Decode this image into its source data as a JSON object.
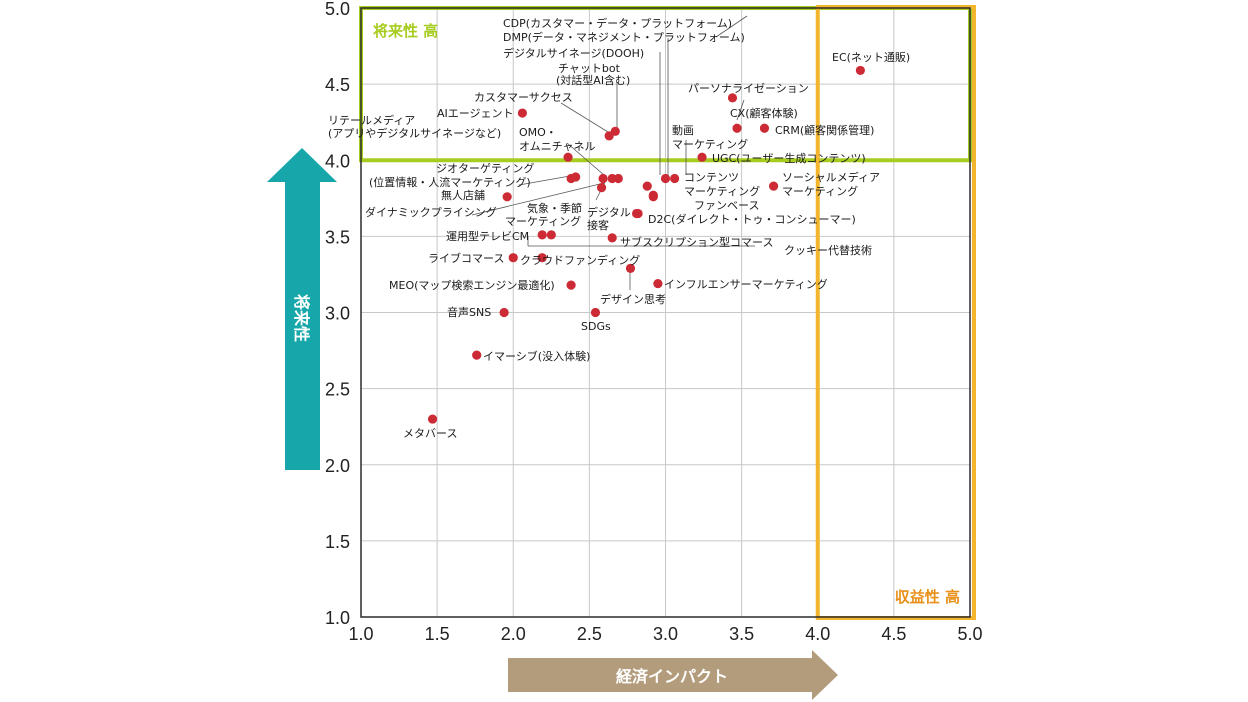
{
  "colors": {
    "grid": "#c8c8c8",
    "frame": "#2b2b2b",
    "point": "#cc2b36",
    "zone_future": "#a6cc1f",
    "zone_profit": "#f3b52c",
    "zone_profit_text": "#e8901a",
    "y_arrow": "#17a6a9",
    "x_arrow": "#b39c7c"
  },
  "chart_data": {
    "type": "scatter",
    "xlabel": "経済インパクト",
    "ylabel": "将来性",
    "xlim": [
      1.0,
      5.0
    ],
    "ylim": [
      1.0,
      5.0
    ],
    "x_ticks": [
      "1.0",
      "1.5",
      "2.0",
      "2.5",
      "3.0",
      "3.5",
      "4.0",
      "4.5",
      "5.0"
    ],
    "y_ticks": [
      "1.0",
      "1.5",
      "2.0",
      "2.5",
      "3.0",
      "3.5",
      "4.0",
      "4.5",
      "5.0"
    ],
    "grid": true,
    "zones": [
      {
        "label": "将来性 高",
        "x_range": [
          1.0,
          5.0
        ],
        "y_range": [
          4.0,
          5.0
        ],
        "color": "green"
      },
      {
        "label": "収益性 高",
        "x_range": [
          4.0,
          5.0
        ],
        "y_range": [
          1.0,
          5.0
        ],
        "color": "orange"
      }
    ],
    "points": [
      {
        "label": "EC(ネット通販)",
        "x": 4.28,
        "y": 4.59
      },
      {
        "label": "パーソナライゼーション",
        "x": 3.44,
        "y": 4.41
      },
      {
        "label": "CX(顧客体験)",
        "x": 3.47,
        "y": 4.21
      },
      {
        "label": "CRM(顧客関係管理)",
        "x": 3.65,
        "y": 4.21
      },
      {
        "label": "UGC(ユーザー生成コンテンツ)",
        "x": 3.24,
        "y": 4.02
      },
      {
        "label": "CDP(カスタマー・データ・プラットフォーム)",
        "x": 3.0,
        "y": 3.88
      },
      {
        "label": "DMP(データ・マネジメント・プラットフォーム)",
        "x": 3.06,
        "y": 3.88
      },
      {
        "label": "デジタルサイネージ(DOOH)",
        "x": 2.69,
        "y": 3.88
      },
      {
        "label": "チャットbot(対話型AI含む)",
        "x": 2.67,
        "y": 4.19
      },
      {
        "label": "カスタマーサクセス",
        "x": 2.63,
        "y": 4.16
      },
      {
        "label": "AIエージェント",
        "x": 2.06,
        "y": 4.31
      },
      {
        "label": "リテールメディア(アプリやデジタルサイネージなど)",
        "x": 2.36,
        "y": 4.02
      },
      {
        "label": "OMO・オムニチャネル",
        "x": 2.59,
        "y": 3.88
      },
      {
        "label": "動画マーケティング",
        "x": 2.92,
        "y": 3.76
      },
      {
        "label": "ジオターゲティング(位置情報・人流マーケティング)",
        "x": 2.41,
        "y": 3.89
      },
      {
        "label": "ジオターゲティング(位置情報・人流マーケティング)",
        "x": 2.38,
        "y": 3.88
      },
      {
        "label": "無人店舗",
        "x": 1.96,
        "y": 3.76
      },
      {
        "label": "ダイナミックプライシング",
        "x": 2.58,
        "y": 3.82
      },
      {
        "label": "気象・季節マーケティング",
        "x": 2.65,
        "y": 3.88
      },
      {
        "label": "デジタル接客",
        "x": 2.88,
        "y": 3.83
      },
      {
        "label": "コンテンツマーケティング",
        "x": 3.71,
        "y": 3.83
      },
      {
        "label": "ソーシャルメディアマーケティング",
        "x": 2.81,
        "y": 3.65
      },
      {
        "label": "ファンベース",
        "x": 2.92,
        "y": 3.77
      },
      {
        "label": "D2C(ダイレクト・トゥ・コンシューマー)",
        "x": 2.82,
        "y": 3.65
      },
      {
        "label": "運用型テレビCM",
        "x": 2.19,
        "y": 3.51
      },
      {
        "label": "クッキー代替技術",
        "x": 2.25,
        "y": 3.51
      },
      {
        "label": "サブスクリプション型コマース",
        "x": 2.65,
        "y": 3.49
      },
      {
        "label": "ライブコマース",
        "x": 2.0,
        "y": 3.36
      },
      {
        "label": "クラウドファンディング",
        "x": 2.19,
        "y": 3.36
      },
      {
        "label": "デザイン思考",
        "x": 2.77,
        "y": 3.29
      },
      {
        "label": "インフルエンサーマーケティング",
        "x": 2.95,
        "y": 3.19
      },
      {
        "label": "MEO(マップ検索エンジン最適化)",
        "x": 2.38,
        "y": 3.18
      },
      {
        "label": "音声SNS",
        "x": 1.94,
        "y": 3.0
      },
      {
        "label": "SDGs",
        "x": 2.54,
        "y": 3.0
      },
      {
        "label": "イマーシブ(没入体験)",
        "x": 1.76,
        "y": 2.72
      },
      {
        "label": "メタバース",
        "x": 1.47,
        "y": 2.3
      }
    ]
  },
  "labels": [
    {
      "text": "EC(ネット通販)"
    },
    {
      "text": "パーソナライゼーション"
    },
    {
      "text": "CX(顧客体験)"
    },
    {
      "text": "CRM(顧客関係管理)"
    },
    {
      "text": "動画"
    },
    {
      "text": "マーケティング"
    },
    {
      "text": "UGC(ユーザー生成コンテンツ)"
    },
    {
      "text": "CDP(カスタマー・データ・プラットフォーム)"
    },
    {
      "text": "DMP(データ・マネジメント・プラットフォーム)"
    },
    {
      "text": "デジタルサイネージ(DOOH)"
    },
    {
      "text": "チャットbot"
    },
    {
      "text": "(対話型AI含む)"
    },
    {
      "text": "カスタマーサクセス"
    },
    {
      "text": "AIエージェント"
    },
    {
      "text": "リテールメディア"
    },
    {
      "text": "(アプリやデジタルサイネージなど)"
    },
    {
      "text": "OMO・"
    },
    {
      "text": "オムニチャネル"
    },
    {
      "text": "ジオターゲティング"
    },
    {
      "text": "(位置情報・人流マーケティング)"
    },
    {
      "text": "無人店舗"
    },
    {
      "text": "ダイナミックプライシング"
    },
    {
      "text": "気象・季節"
    },
    {
      "text": "マーケティング"
    },
    {
      "text": "デジタル"
    },
    {
      "text": "接客"
    },
    {
      "text": "コンテンツ"
    },
    {
      "text": "マーケティング"
    },
    {
      "text": "ファンベース"
    },
    {
      "text": "ソーシャルメディア"
    },
    {
      "text": "マーケティング"
    },
    {
      "text": "D2C(ダイレクト・トゥ・コンシューマー)"
    },
    {
      "text": "運用型テレビCM"
    },
    {
      "text": "サブスクリプション型コマース"
    },
    {
      "text": "クッキー代替技術"
    },
    {
      "text": "ライブコマース"
    },
    {
      "text": "クラウドファンディング"
    },
    {
      "text": "MEO(マップ検索エンジン最適化)"
    },
    {
      "text": "インフルエンサーマーケティング"
    },
    {
      "text": "デザイン思考"
    },
    {
      "text": "音声SNS"
    },
    {
      "text": "SDGs"
    },
    {
      "text": "イマーシブ(没入体験)"
    },
    {
      "text": "メタバース"
    }
  ]
}
